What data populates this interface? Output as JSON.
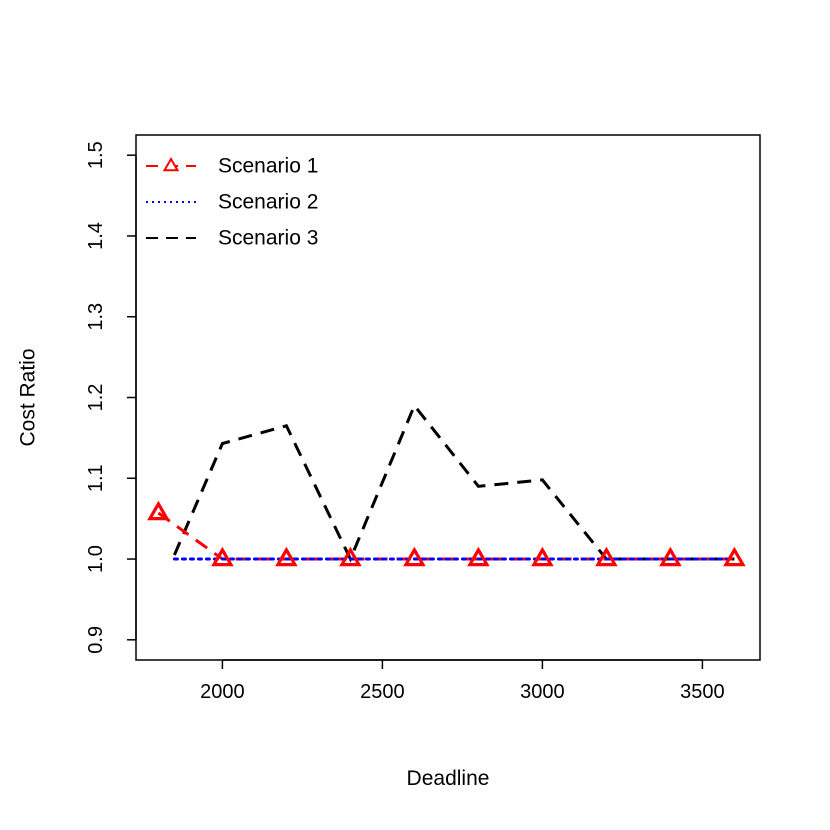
{
  "chart_data": {
    "type": "line",
    "xlabel": "Deadline",
    "ylabel": "Cost Ratio",
    "xlim": [
      1730,
      3680
    ],
    "ylim": [
      0.875,
      1.525
    ],
    "x_ticks": [
      2000,
      2500,
      3000,
      3500
    ],
    "x_tick_labels": [
      "2000",
      "2500",
      "3000",
      "3500"
    ],
    "y_ticks": [
      0.9,
      1.0,
      1.1,
      1.2,
      1.3,
      1.4,
      1.5
    ],
    "y_tick_labels": [
      "0.9",
      "1.0",
      "1.1",
      "1.2",
      "1.3",
      "1.4",
      "1.5"
    ],
    "grid": false,
    "legend_position": "top-left",
    "series": [
      {
        "name": "Scenario 1",
        "color": "#ff0000",
        "line_style": "dashed",
        "marker": "open-triangle",
        "x": [
          1800,
          2000,
          2200,
          2400,
          2600,
          2800,
          3000,
          3200,
          3400,
          3600
        ],
        "y": [
          1.057,
          1.0,
          1.0,
          1.0,
          1.0,
          1.0,
          1.0,
          1.0,
          1.0,
          1.0
        ]
      },
      {
        "name": "Scenario 2",
        "color": "#0000ff",
        "line_style": "dotted",
        "marker": "none",
        "x": [
          1850,
          2000,
          2200,
          2400,
          2600,
          2800,
          3000,
          3200,
          3400,
          3600
        ],
        "y": [
          1.0,
          1.0,
          1.0,
          1.0,
          1.0,
          1.0,
          1.0,
          1.0,
          1.0,
          1.0
        ]
      },
      {
        "name": "Scenario 3",
        "color": "#000000",
        "line_style": "dashed",
        "marker": "none",
        "x": [
          1850,
          2000,
          2200,
          2400,
          2600,
          2800,
          3000,
          3200,
          3400,
          3600
        ],
        "y": [
          1.005,
          1.143,
          1.165,
          1.0,
          1.19,
          1.09,
          1.098,
          1.0,
          1.0,
          1.0
        ]
      }
    ]
  }
}
